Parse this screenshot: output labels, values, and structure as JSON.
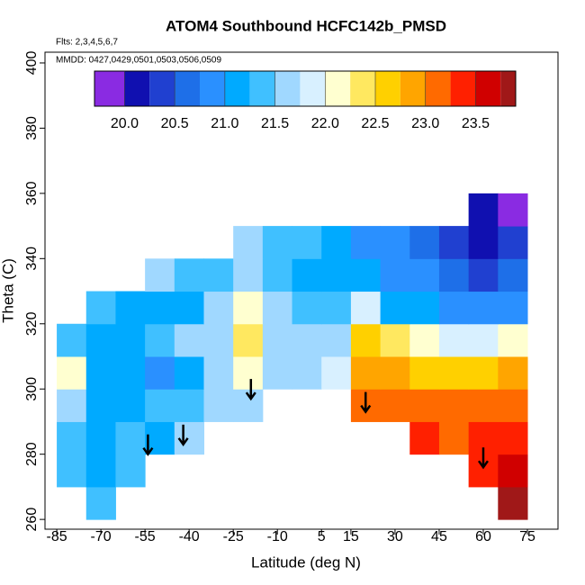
{
  "chart_data": {
    "type": "heatmap",
    "title": "ATOM4 Southbound HCFC142b_PMSD",
    "subtitle": "Flts: 2,3,4,5,6,7",
    "annotation": "MMDD: 0427,0429,0501,0503,0506,0509",
    "xlabel": "Latitude (deg N)",
    "ylabel": "Theta (C)",
    "xlim": [
      -89,
      85.4
    ],
    "ylim": [
      257,
      403.3
    ],
    "xticks": [
      -85,
      -70,
      -55,
      -40,
      -25,
      -10,
      5,
      15,
      30,
      45,
      60,
      75
    ],
    "yticks": [
      260,
      280,
      300,
      320,
      340,
      360,
      380,
      400
    ],
    "x": [
      -80,
      -70,
      -60,
      -50,
      -40,
      -30,
      -20,
      -10,
      0,
      10,
      20,
      30,
      40,
      50,
      60,
      70
    ],
    "y": [
      265,
      275,
      285,
      295,
      305,
      315,
      325,
      335,
      345,
      355
    ],
    "z": [
      [
        null,
        21.3,
        null,
        null,
        null,
        null,
        null,
        null,
        null,
        null,
        null,
        null,
        null,
        null,
        null,
        23.8
      ],
      [
        21.4,
        21.0,
        21.3,
        null,
        null,
        null,
        null,
        null,
        null,
        null,
        null,
        null,
        null,
        null,
        23.4,
        23.6
      ],
      [
        21.4,
        21.0,
        21.3,
        21.2,
        21.5,
        null,
        null,
        null,
        null,
        null,
        null,
        null,
        23.3,
        23.2,
        23.3,
        23.4
      ],
      [
        21.6,
        21.1,
        21.0,
        21.3,
        21.4,
        21.6,
        21.7,
        null,
        null,
        null,
        23.2,
        23.2,
        23.1,
        23.0,
        23.1,
        23.2
      ],
      [
        22.1,
        21.0,
        21.2,
        20.9,
        21.0,
        21.5,
        22.0,
        21.7,
        21.6,
        21.9,
        22.9,
        22.8,
        22.7,
        22.6,
        22.7,
        22.9
      ],
      [
        21.4,
        21.2,
        21.0,
        21.3,
        21.5,
        21.6,
        22.3,
        21.6,
        21.5,
        21.7,
        22.6,
        22.3,
        22.0,
        21.8,
        21.8,
        22.0
      ],
      [
        null,
        21.4,
        21.1,
        21.2,
        21.0,
        21.5,
        22.1,
        21.7,
        21.4,
        21.3,
        21.8,
        21.2,
        21.0,
        20.9,
        20.8,
        20.8
      ],
      [
        null,
        null,
        null,
        21.5,
        21.4,
        21.3,
        21.5,
        21.4,
        21.2,
        21.1,
        21.0,
        20.9,
        20.8,
        20.6,
        20.4,
        20.5
      ],
      [
        null,
        null,
        null,
        null,
        null,
        null,
        21.6,
        21.4,
        21.3,
        21.1,
        20.9,
        20.8,
        20.7,
        20.4,
        20.2,
        20.3
      ],
      [
        null,
        null,
        null,
        null,
        null,
        null,
        null,
        null,
        null,
        null,
        null,
        null,
        null,
        null,
        20.0,
        19.8
      ]
    ],
    "colorbar": {
      "breaks": [
        19.7,
        20.0,
        20.25,
        20.5,
        20.75,
        21.0,
        21.25,
        21.5,
        21.75,
        22.0,
        22.25,
        22.5,
        22.75,
        23.0,
        23.25,
        23.5,
        23.75,
        23.9
      ],
      "colors": [
        "#8a2be2",
        "#1010b0",
        "#2040d0",
        "#1e6fe8",
        "#2a90ff",
        "#00aaff",
        "#40c0ff",
        "#a0d8ff",
        "#d8f0ff",
        "#ffffd0",
        "#ffe860",
        "#ffd000",
        "#ffa500",
        "#ff6a00",
        "#ff2000",
        "#d00000",
        "#a01818"
      ],
      "ticks": [
        {
          "value": 20,
          "label": "20.0"
        },
        20.5,
        {
          "value": 21,
          "label": "21.0"
        },
        21.5,
        {
          "value": 22,
          "label": "22.0"
        },
        22.5,
        {
          "value": 23,
          "label": "23.0"
        },
        23.5
      ]
    },
    "arrows": {
      "x": [
        -54,
        -42,
        -19,
        20,
        60
      ],
      "y": [
        280,
        283,
        297,
        293,
        276
      ]
    }
  }
}
